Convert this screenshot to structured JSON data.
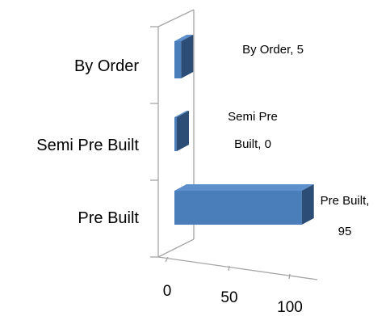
{
  "chart_data": {
    "type": "bar",
    "orientation": "horizontal",
    "style": "3d",
    "categories": [
      "By Order",
      "Semi Pre Built",
      "Pre Built"
    ],
    "values": [
      5,
      0,
      95
    ],
    "xlim": [
      0,
      100
    ],
    "xticks": [
      "0",
      "50",
      "100"
    ],
    "data_labels": [
      [
        "By Order, 5"
      ],
      [
        "Semi Pre",
        "Built, 0"
      ],
      [
        "Pre Built,",
        "95"
      ]
    ],
    "colors": {
      "bar_front": "#4a7ebb",
      "bar_side": "#2c4d75",
      "bar_top": "#5d8fcc",
      "axis": "#a6a6a6"
    },
    "grid": false,
    "legend": "none"
  }
}
